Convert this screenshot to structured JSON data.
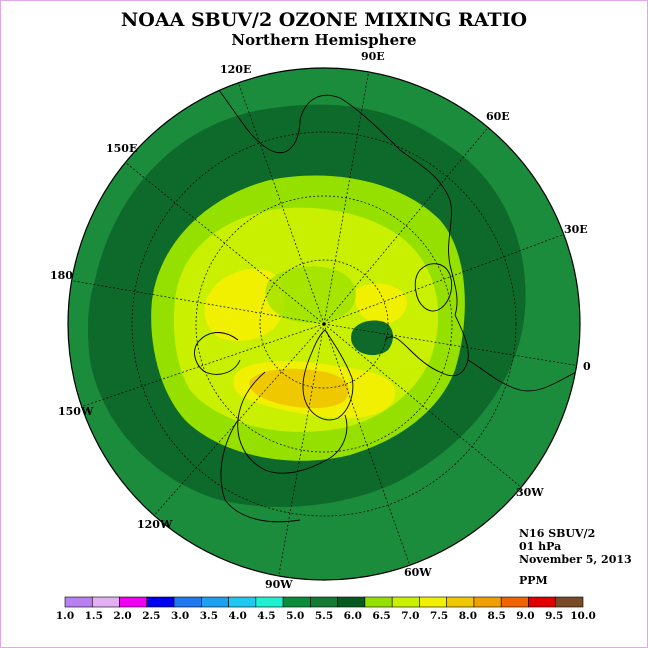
{
  "title": "NOAA SBUV/2 OZONE MIXING RATIO",
  "subtitle": "Northern Hemisphere",
  "longitude_labels": [
    "90E",
    "60E",
    "30E",
    "0",
    "30W",
    "60W",
    "90W",
    "120W",
    "150W",
    "180",
    "150E",
    "120E"
  ],
  "info": {
    "instrument": "N16 SBUV/2",
    "level": "01 hPa",
    "date": "November 5, 2013"
  },
  "unit": "PPM",
  "colorbar": {
    "ticks": [
      "1.0",
      "1.5",
      "2.0",
      "2.5",
      "3.0",
      "3.5",
      "4.0",
      "4.5",
      "5.0",
      "5.5",
      "6.0",
      "6.5",
      "7.0",
      "7.5",
      "8.0",
      "8.5",
      "9.0",
      "9.5",
      "10.0"
    ],
    "colors": [
      "#b87ff0",
      "#e0b0f0",
      "#f000f0",
      "#0000f0",
      "#1e78f0",
      "#1ea0f0",
      "#1ec8f0",
      "#1ef0d0",
      "#0a8c3a",
      "#127a32",
      "#055a20",
      "#96e000",
      "#c8f000",
      "#f0f000",
      "#f0c800",
      "#f0a000",
      "#f06400",
      "#e00000",
      "#784a28"
    ]
  },
  "map_colors": {
    "c55": "#1a8c3c",
    "c60": "#0e6a2a",
    "c65": "#96e000",
    "c70": "#c8f000",
    "c75": "#f0f000",
    "c80": "#f0c800",
    "c85": "#f0a000"
  }
}
